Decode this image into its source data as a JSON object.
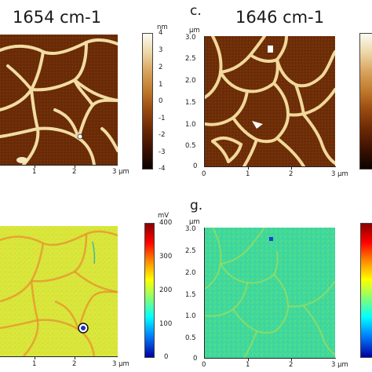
{
  "panels": {
    "top_left": {
      "title": "1654 cm-1",
      "x_ticks": [
        "1",
        "2",
        "3 µm"
      ],
      "colorbar": {
        "unit": "nm",
        "ticks": [
          "4",
          "3",
          "2",
          "1",
          "0",
          "-1",
          "-2",
          "-3",
          "-4"
        ],
        "colormap": "afm-hot"
      }
    },
    "top_right": {
      "letter": "c.",
      "title": "1646 cm-1",
      "y_unit": "µm",
      "y_ticks": [
        "3.0",
        "2.5",
        "2.0",
        "1.5",
        "1.0",
        "0.5",
        "0"
      ],
      "x_ticks": [
        "0",
        "1",
        "2",
        "3 µm"
      ],
      "colormap": "afm-hot"
    },
    "bottom_left": {
      "x_ticks": [
        "1",
        "2",
        "3 µm"
      ],
      "colorbar": {
        "unit": "mV",
        "ticks": [
          "400",
          "300",
          "200",
          "100",
          "0"
        ],
        "colormap": "jet"
      }
    },
    "bottom_right": {
      "letter": "g.",
      "y_unit": "µm",
      "y_ticks": [
        "3.0",
        "2.5",
        "2.0",
        "1.5",
        "1.0",
        "0.5",
        "0"
      ],
      "x_ticks": [
        "0",
        "1",
        "2",
        "3 µm"
      ],
      "colormap": "jet"
    }
  },
  "colors": {
    "topo_dark": "#6b2c07",
    "topo_light": "#f2dca3",
    "amp_left_bg": "#d8e83a",
    "amp_left_net": "#e8902e",
    "amp_right_bg": "#40d89a",
    "amp_right_net": "#b4e04a"
  }
}
